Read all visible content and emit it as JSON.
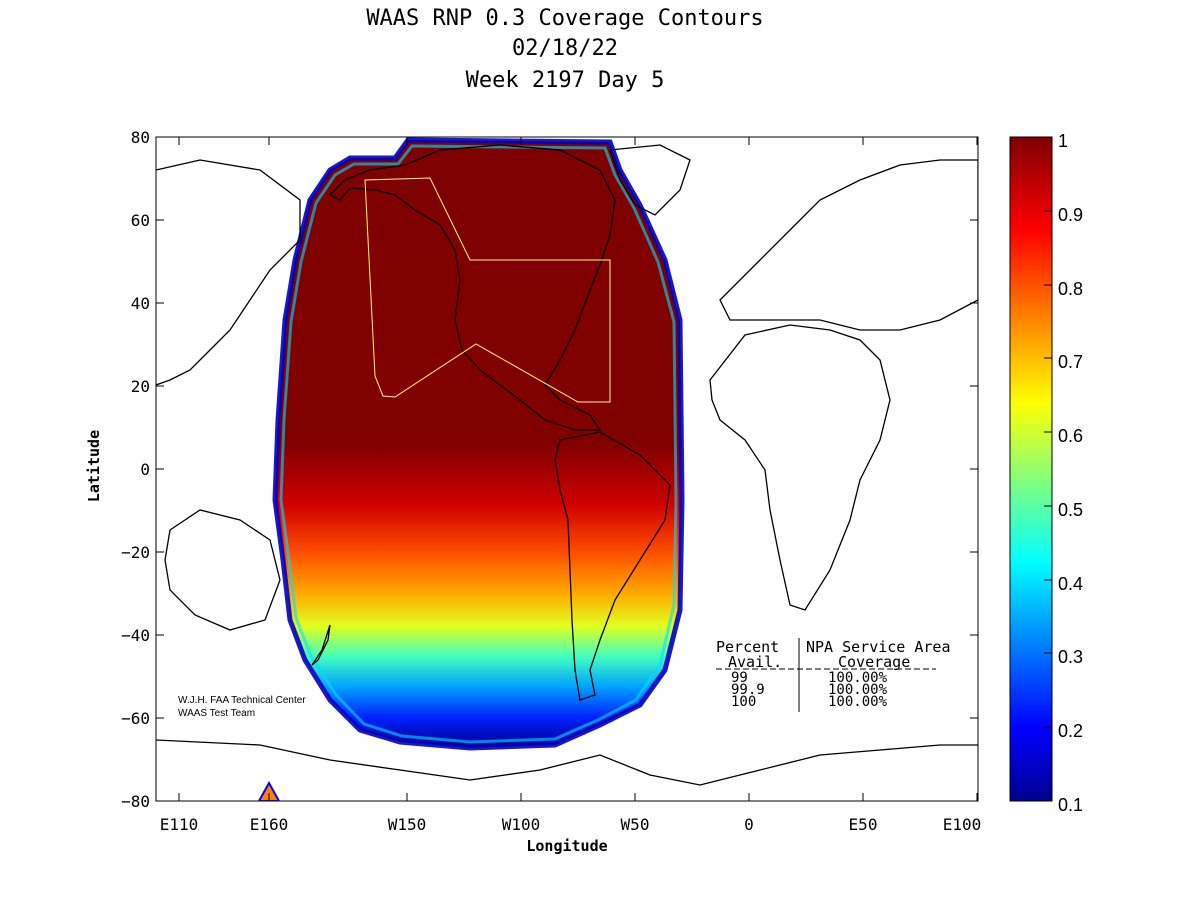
{
  "title": {
    "line1": "WAAS RNP 0.3 Coverage Contours",
    "line2": "02/18/22",
    "line3": "Week 2197 Day 5"
  },
  "axes": {
    "xlabel": "Longitude",
    "ylabel": "Latitude",
    "x_ticks": [
      "E110",
      "E160",
      "W150",
      "W100",
      "W50",
      "0",
      "E50",
      "E100"
    ],
    "y_ticks": [
      "80",
      "60",
      "40",
      "20",
      "0",
      "−20",
      "−40",
      "−60",
      "−80"
    ]
  },
  "colorbar": {
    "ticks": [
      "1",
      "0.9",
      "0.8",
      "0.7",
      "0.6",
      "0.5",
      "0.4",
      "0.3",
      "0.2",
      "0.1"
    ],
    "range": [
      0.1,
      1
    ],
    "colormap": "jet"
  },
  "credit": {
    "line1": "W.J.H. FAA Technical Center",
    "line2": "WAAS Test Team"
  },
  "stats_table": {
    "header_col1_top": "Percent",
    "header_col1_bottom": "Avail.",
    "header_col2_top": "NPA Service Area",
    "header_col2_bottom": "Coverage",
    "rows": [
      {
        "avail": "99",
        "coverage": "100.00%"
      },
      {
        "avail": "99.9",
        "coverage": "100.00%"
      },
      {
        "avail": "100",
        "coverage": "100.00%"
      }
    ]
  },
  "chart_data": {
    "type": "heatmap",
    "projection": "equirectangular, centered on 130W (longitude 110E to 100E across)",
    "xlim": [
      "E110",
      "E100"
    ],
    "ylim": [
      -80,
      80
    ],
    "value_range": [
      0.1,
      1
    ],
    "coverage_region": {
      "longitude_range_approx": [
        "E165",
        "W35"
      ],
      "latitude_range_approx": [
        -68,
        78
      ]
    },
    "contours": [
      {
        "level": 1.0,
        "description": "full availability north of about 10S over North America, Central America, northern South America"
      },
      {
        "level": 0.9,
        "description": "band near 20S to 30S"
      },
      {
        "level": 0.7,
        "description": "band near 40S to 45S"
      },
      {
        "level": 0.4,
        "description": "band near 50S"
      },
      {
        "level": 0.1,
        "description": "southern edge near 65S"
      }
    ],
    "service_area_outline": "yellow polygon around CONUS, Alaska and Hawaii"
  }
}
